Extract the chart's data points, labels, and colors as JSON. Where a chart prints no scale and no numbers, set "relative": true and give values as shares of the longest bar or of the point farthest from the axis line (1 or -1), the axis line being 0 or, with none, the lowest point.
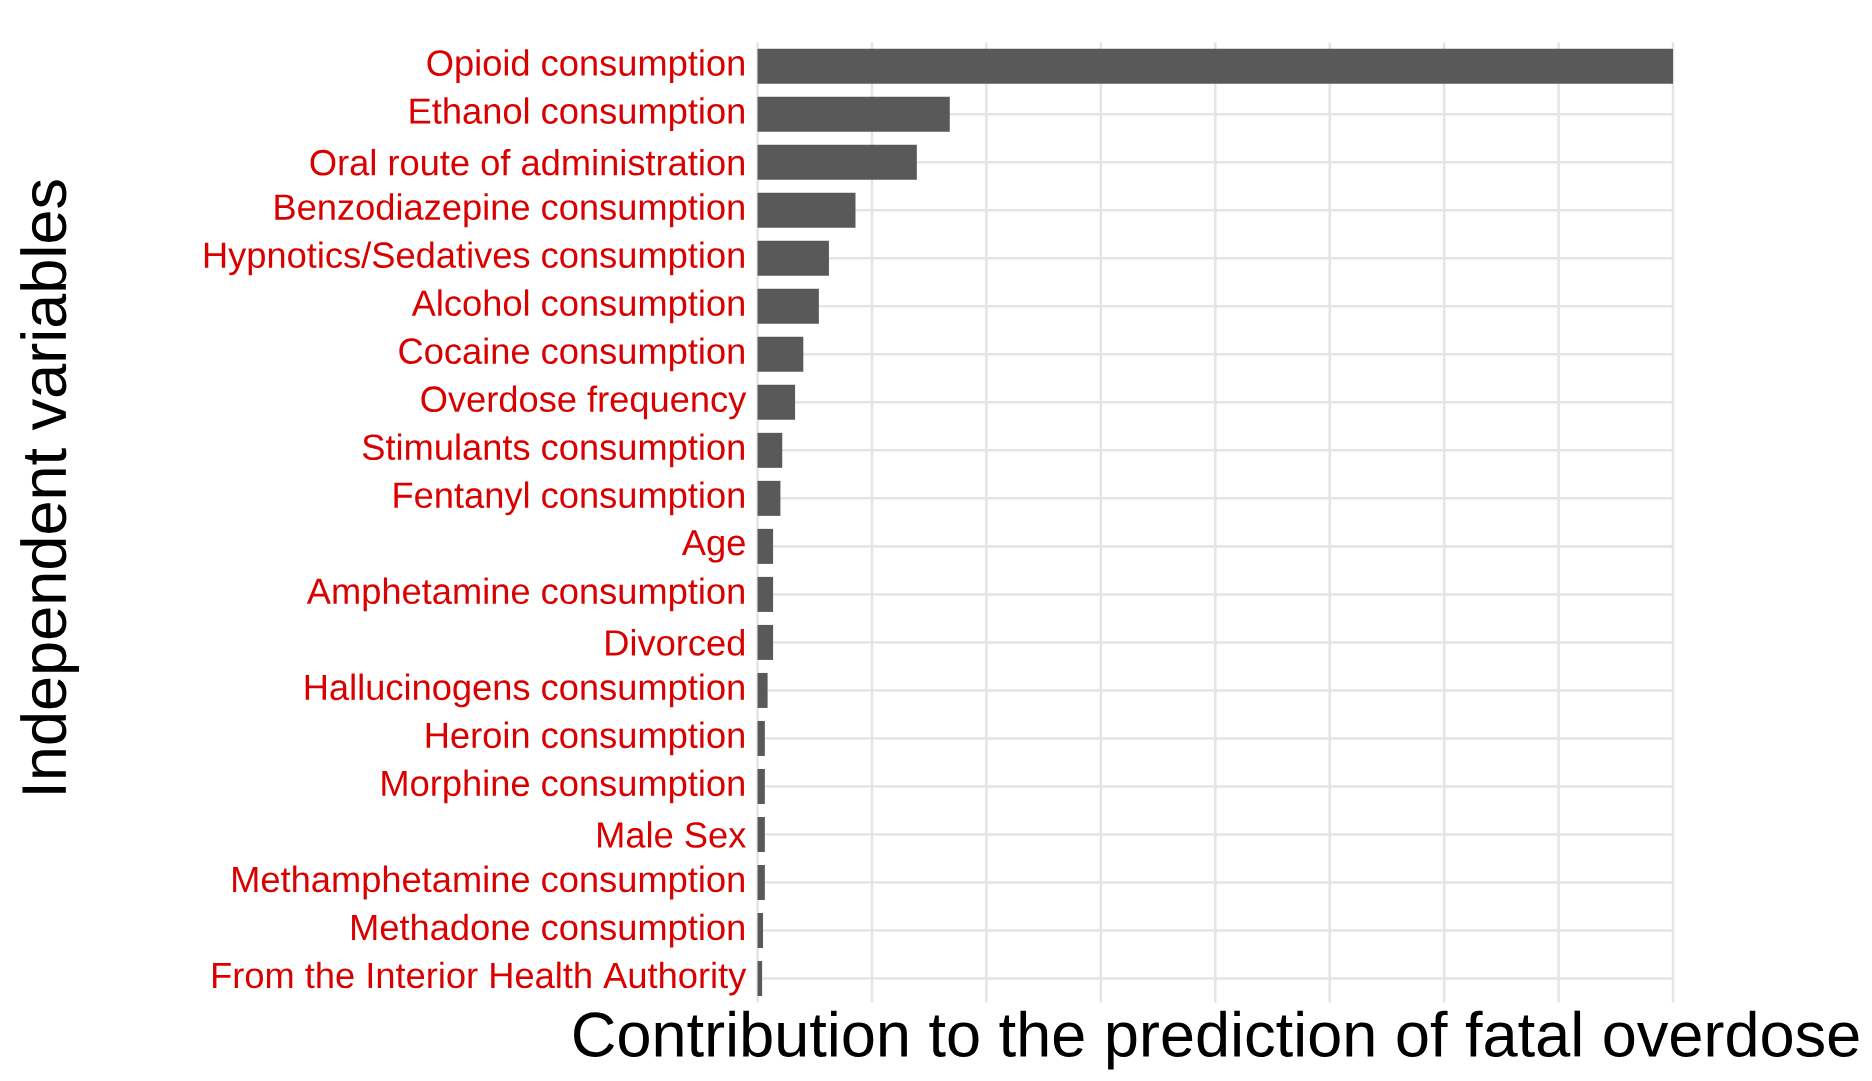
{
  "chart_data": {
    "type": "bar",
    "orientation": "horizontal",
    "relative": true,
    "grid": true,
    "xlabel": "Contribution to the prediction of fatal overdose",
    "ylabel": "Independent variables",
    "categories": [
      "Opioid consumption",
      "Ethanol consumption",
      "Oral route of administration",
      "Benzodiazepine consumption",
      "Hypnotics/Sedatives consumption",
      "Alcohol consumption",
      "Cocaine consumption",
      "Overdose frequency",
      "Stimulants consumption",
      "Fentanyl consumption",
      "Age",
      "Amphetamine consumption",
      "Divorced",
      "Hallucinogens consumption",
      "Heroin consumption",
      "Morphine consumption",
      "Male Sex",
      "Methamphetamine consumption",
      "Methadone consumption",
      "From the Interior Health Authority"
    ],
    "values": [
      1,
      0.21,
      0.174,
      0.107,
      0.078,
      0.067,
      0.05,
      0.041,
      0.027,
      0.025,
      0.017,
      0.017,
      0.017,
      0.011,
      0.008,
      0.008,
      0.008,
      0.008,
      0.006,
      0.005
    ],
    "color": "#595959"
  }
}
